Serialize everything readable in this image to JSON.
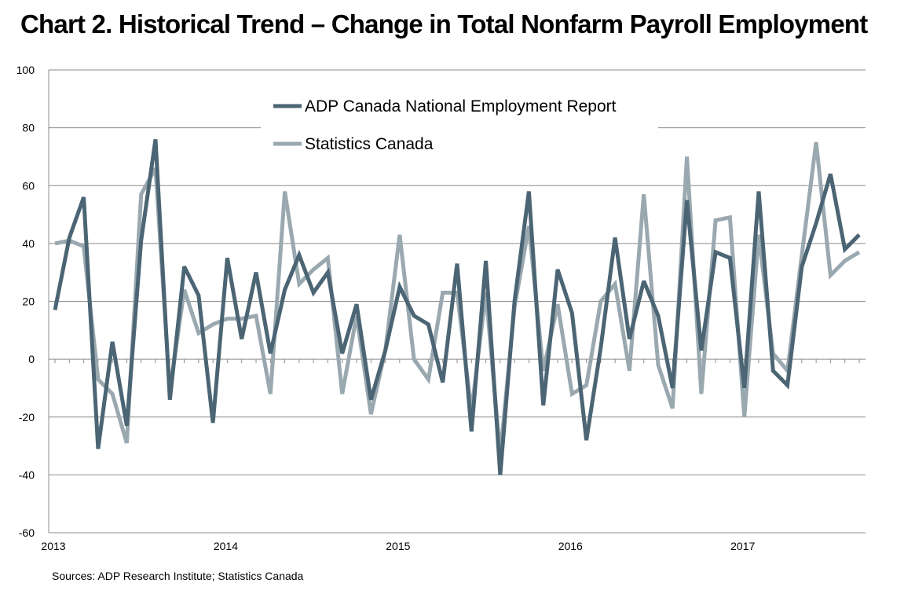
{
  "chart_data": {
    "type": "line",
    "title": "Chart 2. Historical Trend – Change in Total Nonfarm Payroll Employment",
    "source": "Sources: ADP Research Institute; Statistics Canada",
    "ylim": [
      -60,
      100
    ],
    "yticks": [
      -60,
      -40,
      -20,
      0,
      20,
      40,
      60,
      80,
      100
    ],
    "xticks": [
      {
        "label": "2013",
        "index": 0
      },
      {
        "label": "2014",
        "index": 12
      },
      {
        "label": "2015",
        "index": 24
      },
      {
        "label": "2016",
        "index": 36
      },
      {
        "label": "2017",
        "index": 48
      }
    ],
    "n_points": 57,
    "grid": true,
    "legend_position": "top-center",
    "series": [
      {
        "name": "ADP Canada National Employment Report",
        "color": "#4b6574",
        "values": [
          17,
          42,
          56,
          -31,
          6,
          -23,
          41,
          76,
          -14,
          32,
          22,
          -22,
          35,
          7,
          30,
          2,
          24,
          36,
          23,
          30,
          2,
          19,
          -14,
          3,
          25,
          15,
          12,
          -8,
          33,
          -25,
          34,
          -40,
          20,
          58,
          -16,
          31,
          16,
          -28,
          4,
          42,
          7,
          27,
          15,
          -10,
          55,
          3,
          37,
          35,
          -10,
          58,
          -4,
          -9,
          32,
          47,
          64,
          38,
          43
        ]
      },
      {
        "name": "Statistics Canada",
        "color": "#9aa8b0",
        "values": [
          40,
          41,
          39,
          -7,
          -12,
          -29,
          57,
          66,
          -11,
          24,
          9,
          12,
          14,
          14,
          15,
          -12,
          58,
          26,
          31,
          35,
          -12,
          15,
          -19,
          3,
          43,
          0,
          -7,
          23,
          23,
          -18,
          23,
          -33,
          18,
          46,
          -4,
          19,
          -12,
          -9,
          20,
          26,
          -4,
          57,
          -2,
          -17,
          70,
          -12,
          48,
          49,
          -20,
          43,
          2,
          -4,
          36,
          75,
          29,
          34,
          37
        ]
      }
    ]
  }
}
